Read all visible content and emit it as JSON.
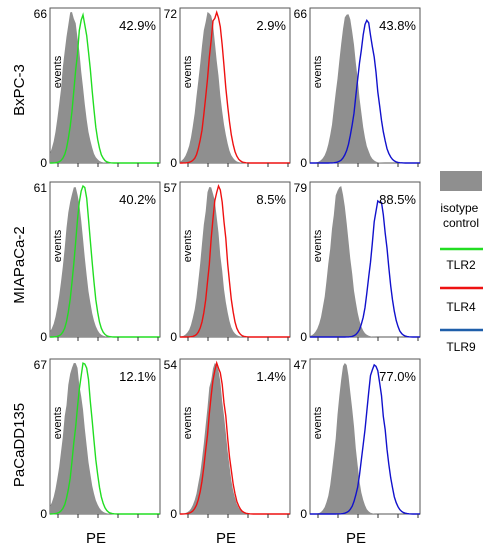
{
  "figure": {
    "x_label": "PE",
    "y_label": "events",
    "zero_label": "0",
    "legend": {
      "isotype": "isotype control",
      "isotype_lines": [
        "isotype",
        "control"
      ],
      "tlr2": "TLR2",
      "tlr4": "TLR4",
      "tlr9": "TLR9"
    },
    "colors": {
      "isotype": "#8f8f8f",
      "tlr2": "#22dd22",
      "tlr4": "#ee1111",
      "tlr9": "#1111cc",
      "legend_tlr9": "#1f5faa"
    }
  },
  "chart_data": [
    {
      "type": "area",
      "row_label": "BxPC-3",
      "series": [
        {
          "name": "isotype control"
        },
        {
          "name": "TLR2"
        }
      ],
      "ymax_label": "66",
      "percent": "42.9%"
    },
    {
      "type": "area",
      "row_label": "BxPC-3",
      "series": [
        {
          "name": "isotype control"
        },
        {
          "name": "TLR4"
        }
      ],
      "ymax_label": "72",
      "percent": "2.9%"
    },
    {
      "type": "area",
      "row_label": "BxPC-3",
      "series": [
        {
          "name": "isotype control"
        },
        {
          "name": "TLR9"
        }
      ],
      "ymax_label": "66",
      "percent": "43.8%"
    },
    {
      "type": "area",
      "row_label": "MIAPaCa-2",
      "series": [
        {
          "name": "isotype control"
        },
        {
          "name": "TLR2"
        }
      ],
      "ymax_label": "61",
      "percent": "40.2%"
    },
    {
      "type": "area",
      "row_label": "MIAPaCa-2",
      "series": [
        {
          "name": "isotype control"
        },
        {
          "name": "TLR4"
        }
      ],
      "ymax_label": "57",
      "percent": "8.5%"
    },
    {
      "type": "area",
      "row_label": "MIAPaCa-2",
      "series": [
        {
          "name": "isotype control"
        },
        {
          "name": "TLR9"
        }
      ],
      "ymax_label": "79",
      "percent": "88.5%"
    },
    {
      "type": "area",
      "row_label": "PaCaDD135",
      "series": [
        {
          "name": "isotype control"
        },
        {
          "name": "TLR2"
        }
      ],
      "ymax_label": "67",
      "percent": "12.1%"
    },
    {
      "type": "area",
      "row_label": "PaCaDD135",
      "series": [
        {
          "name": "isotype control"
        },
        {
          "name": "TLR4"
        }
      ],
      "ymax_label": "54",
      "percent": "1.4%"
    },
    {
      "type": "area",
      "row_label": "PaCaDD135",
      "series": [
        {
          "name": "isotype control"
        },
        {
          "name": "TLR9"
        }
      ],
      "ymax_label": "47",
      "percent": "77.0%"
    }
  ]
}
